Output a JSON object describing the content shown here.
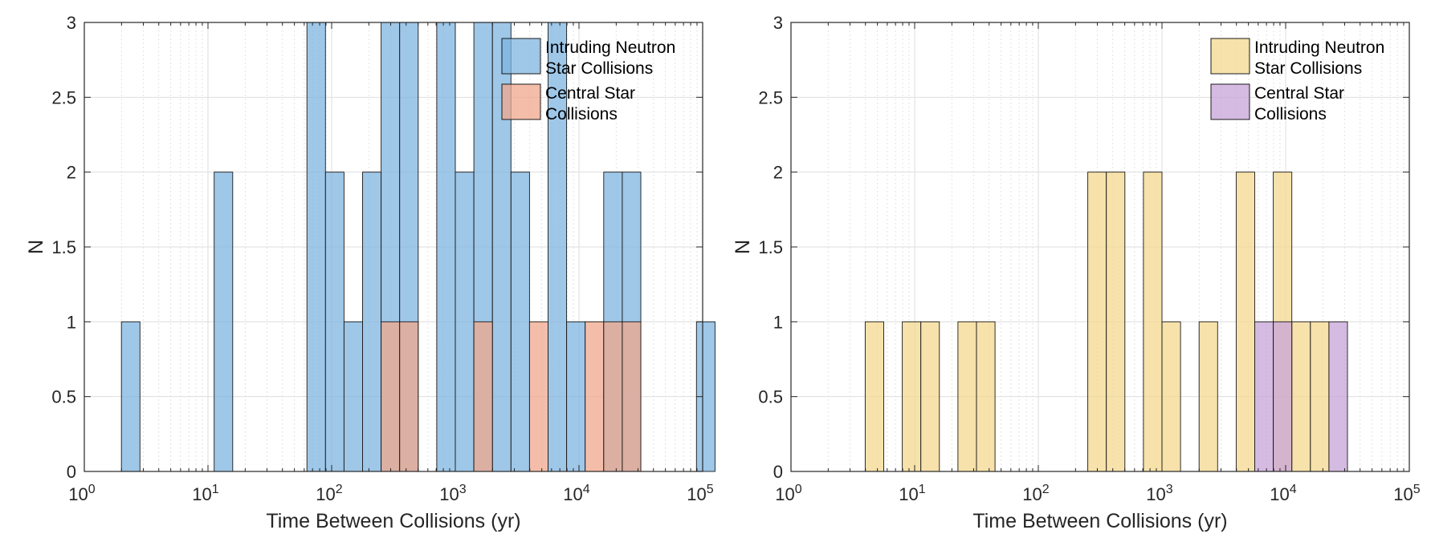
{
  "chart_data": [
    {
      "type": "bar",
      "subtype": "histogram",
      "xscale": "log",
      "xlim": [
        1,
        100000
      ],
      "ylim": [
        0,
        3
      ],
      "xlabel": "Time Between Collisions (yr)",
      "ylabel": "N",
      "x_ticks": [
        {
          "base": "10",
          "exp": "0"
        },
        {
          "base": "10",
          "exp": "1"
        },
        {
          "base": "10",
          "exp": "2"
        },
        {
          "base": "10",
          "exp": "3"
        },
        {
          "base": "10",
          "exp": "4"
        },
        {
          "base": "10",
          "exp": "5"
        }
      ],
      "y_ticks": [
        "0",
        "0.5",
        "1",
        "1.5",
        "2",
        "2.5",
        "3"
      ],
      "grid": true,
      "legend_position": "top-right",
      "bin_log_edges": {
        "start": 0.3,
        "width": 0.15
      },
      "series": [
        {
          "name": "Intruding Neutron Star Collisions",
          "legend_lines": [
            "Intruding Neutron",
            "Star Collisions"
          ],
          "color": "#7db4e0",
          "bins": [
            {
              "bin": 0,
              "count": 1
            },
            {
              "bin": 5,
              "count": 2
            },
            {
              "bin": 10,
              "count": 3
            },
            {
              "bin": 11,
              "count": 2
            },
            {
              "bin": 12,
              "count": 1
            },
            {
              "bin": 13,
              "count": 2
            },
            {
              "bin": 14,
              "count": 3
            },
            {
              "bin": 15,
              "count": 3
            },
            {
              "bin": 17,
              "count": 3
            },
            {
              "bin": 18,
              "count": 2
            },
            {
              "bin": 19,
              "count": 3
            },
            {
              "bin": 20,
              "count": 3
            },
            {
              "bin": 21,
              "count": 2
            },
            {
              "bin": 23,
              "count": 3
            },
            {
              "bin": 24,
              "count": 1
            },
            {
              "bin": 26,
              "count": 2
            },
            {
              "bin": 27,
              "count": 2
            },
            {
              "bin": 31,
              "count": 1
            }
          ]
        },
        {
          "name": "Central Star Collisions",
          "legend_lines": [
            "Central Star",
            "Collisions"
          ],
          "color": "#f0a78c",
          "bins": [
            {
              "bin": 14,
              "count": 1
            },
            {
              "bin": 15,
              "count": 1
            },
            {
              "bin": 19,
              "count": 1
            },
            {
              "bin": 22,
              "count": 1
            },
            {
              "bin": 25,
              "count": 1
            },
            {
              "bin": 26,
              "count": 1
            },
            {
              "bin": 27,
              "count": 1
            }
          ]
        }
      ]
    },
    {
      "type": "bar",
      "subtype": "histogram",
      "xscale": "log",
      "xlim": [
        1,
        100000
      ],
      "ylim": [
        0,
        3
      ],
      "xlabel": "Time Between Collisions (yr)",
      "ylabel": "N",
      "x_ticks": [
        {
          "base": "10",
          "exp": "0"
        },
        {
          "base": "10",
          "exp": "1"
        },
        {
          "base": "10",
          "exp": "2"
        },
        {
          "base": "10",
          "exp": "3"
        },
        {
          "base": "10",
          "exp": "4"
        },
        {
          "base": "10",
          "exp": "5"
        }
      ],
      "y_ticks": [
        "0",
        "0.5",
        "1",
        "1.5",
        "2",
        "2.5",
        "3"
      ],
      "grid": true,
      "legend_position": "top-right",
      "bin_log_edges": {
        "start": 0.6,
        "width": 0.15
      },
      "series": [
        {
          "name": "Intruding Neutron Star Collisions",
          "legend_lines": [
            "Intruding Neutron",
            "Star Collisions"
          ],
          "color": "#f3d88d",
          "bins": [
            {
              "bin": 0,
              "count": 1
            },
            {
              "bin": 2,
              "count": 1
            },
            {
              "bin": 3,
              "count": 1
            },
            {
              "bin": 5,
              "count": 1
            },
            {
              "bin": 6,
              "count": 1
            },
            {
              "bin": 12,
              "count": 2
            },
            {
              "bin": 13,
              "count": 2
            },
            {
              "bin": 15,
              "count": 2
            },
            {
              "bin": 16,
              "count": 1
            },
            {
              "bin": 18,
              "count": 1
            },
            {
              "bin": 20,
              "count": 2
            },
            {
              "bin": 22,
              "count": 2
            },
            {
              "bin": 23,
              "count": 1
            },
            {
              "bin": 24,
              "count": 1
            }
          ]
        },
        {
          "name": "Central Star Collisions",
          "legend_lines": [
            "Central Star",
            "Collisions"
          ],
          "color": "#c7a3d8",
          "bins": [
            {
              "bin": 21,
              "count": 1
            },
            {
              "bin": 22,
              "count": 1
            },
            {
              "bin": 25,
              "count": 1
            }
          ]
        }
      ]
    }
  ]
}
